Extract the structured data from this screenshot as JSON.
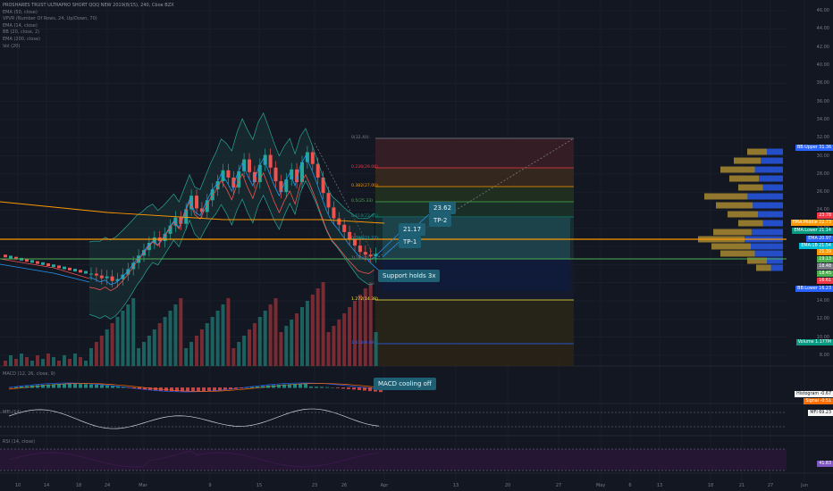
{
  "chart": {
    "title": "PROSHARES TRUST ULTRAPRO SHORT QQQ NEW 2019(8/15), 240, Cboe BZX",
    "indicators": [
      "EMA (50, close)",
      "VPVR (Number Of Rows, 24, Up/Down, 70)",
      "EMA (14, close)",
      "BB (20, close, 2)",
      "EMA (200, close)",
      "Vol (20)"
    ],
    "price_axis": [
      "46.00",
      "44.00",
      "42.00",
      "40.00",
      "38.00",
      "36.00",
      "34.00",
      "32.00",
      "30.00",
      "28.00",
      "26.00",
      "24.00",
      "22.00",
      "20.00",
      "18.00",
      "16.00",
      "14.00",
      "12.00",
      "10.00",
      "8.00"
    ],
    "x_axis": [
      "10",
      "14",
      "18",
      "24",
      "Mar",
      "9",
      "15",
      "23",
      "26",
      "Apr",
      "13",
      "20",
      "27",
      "May",
      "6",
      "13",
      "18",
      "21",
      "27",
      "Jun"
    ],
    "fib_levels": [
      {
        "label": "0(32.40)",
        "color": "#787b86"
      },
      {
        "label": "0.236(29.08)",
        "color": "#f23645"
      },
      {
        "label": "0.382(27.00)",
        "color": "#ff9800"
      },
      {
        "label": "0.5(25.33)",
        "color": "#4caf50"
      },
      {
        "label": "0.618(23.65)",
        "color": "#089981"
      },
      {
        "label": "0.786(21.27)",
        "color": "#00bcd4"
      },
      {
        "label": "1(18.24)",
        "color": "#787b86"
      },
      {
        "label": "1.272(14.38)",
        "color": "#ffeb3b"
      },
      {
        "label": "1.618(9.49)",
        "color": "#2962ff"
      }
    ],
    "callouts": {
      "tp1_price": "21.17",
      "tp1_label": "TP-1",
      "tp2_price": "23.62",
      "tp2_label": "TP-2",
      "support": "Support holds 3x",
      "macd": "MACD cooling off"
    },
    "price_tags": [
      {
        "label": "BB:Upper  31.36",
        "color": "#2962ff",
        "y": 165
      },
      {
        "label": "23.78",
        "color": "#f23645",
        "y": 241
      },
      {
        "label": "EMA:Middle 22.73",
        "color": "#ff9800",
        "y": 249
      },
      {
        "label": "EMA:Lower  21.14",
        "color": "#089981",
        "y": 258
      },
      {
        "label": "EMA  20.97",
        "color": "#2962ff",
        "y": 267
      },
      {
        "label": "EMA:1B  21.54",
        "color": "#00bcd4",
        "y": 275
      },
      {
        "label": "21.39",
        "color": "#ff9800",
        "y": 282
      },
      {
        "label": "19.13",
        "color": "#4caf50",
        "y": 290
      },
      {
        "label": "18.48",
        "color": "#787b86",
        "y": 298
      },
      {
        "label": "18.45",
        "color": "#4caf50",
        "y": 306
      },
      {
        "label": "16.61",
        "color": "#f23645",
        "y": 314
      },
      {
        "label": "BB:Lower  16.23",
        "color": "#2962ff",
        "y": 323
      },
      {
        "label": "Volume  1.177M",
        "color": "#089981",
        "y": 383
      }
    ],
    "macd": {
      "label": "MACD (12, 26, close, 9)",
      "histogram": "Histogram -0.67",
      "signal": "Signal -0.51"
    },
    "mfi": {
      "label": "MFI (14)",
      "value": "MFI 69.23"
    },
    "rsi": {
      "label": "RSI (14, close)",
      "value": "41.83"
    }
  }
}
